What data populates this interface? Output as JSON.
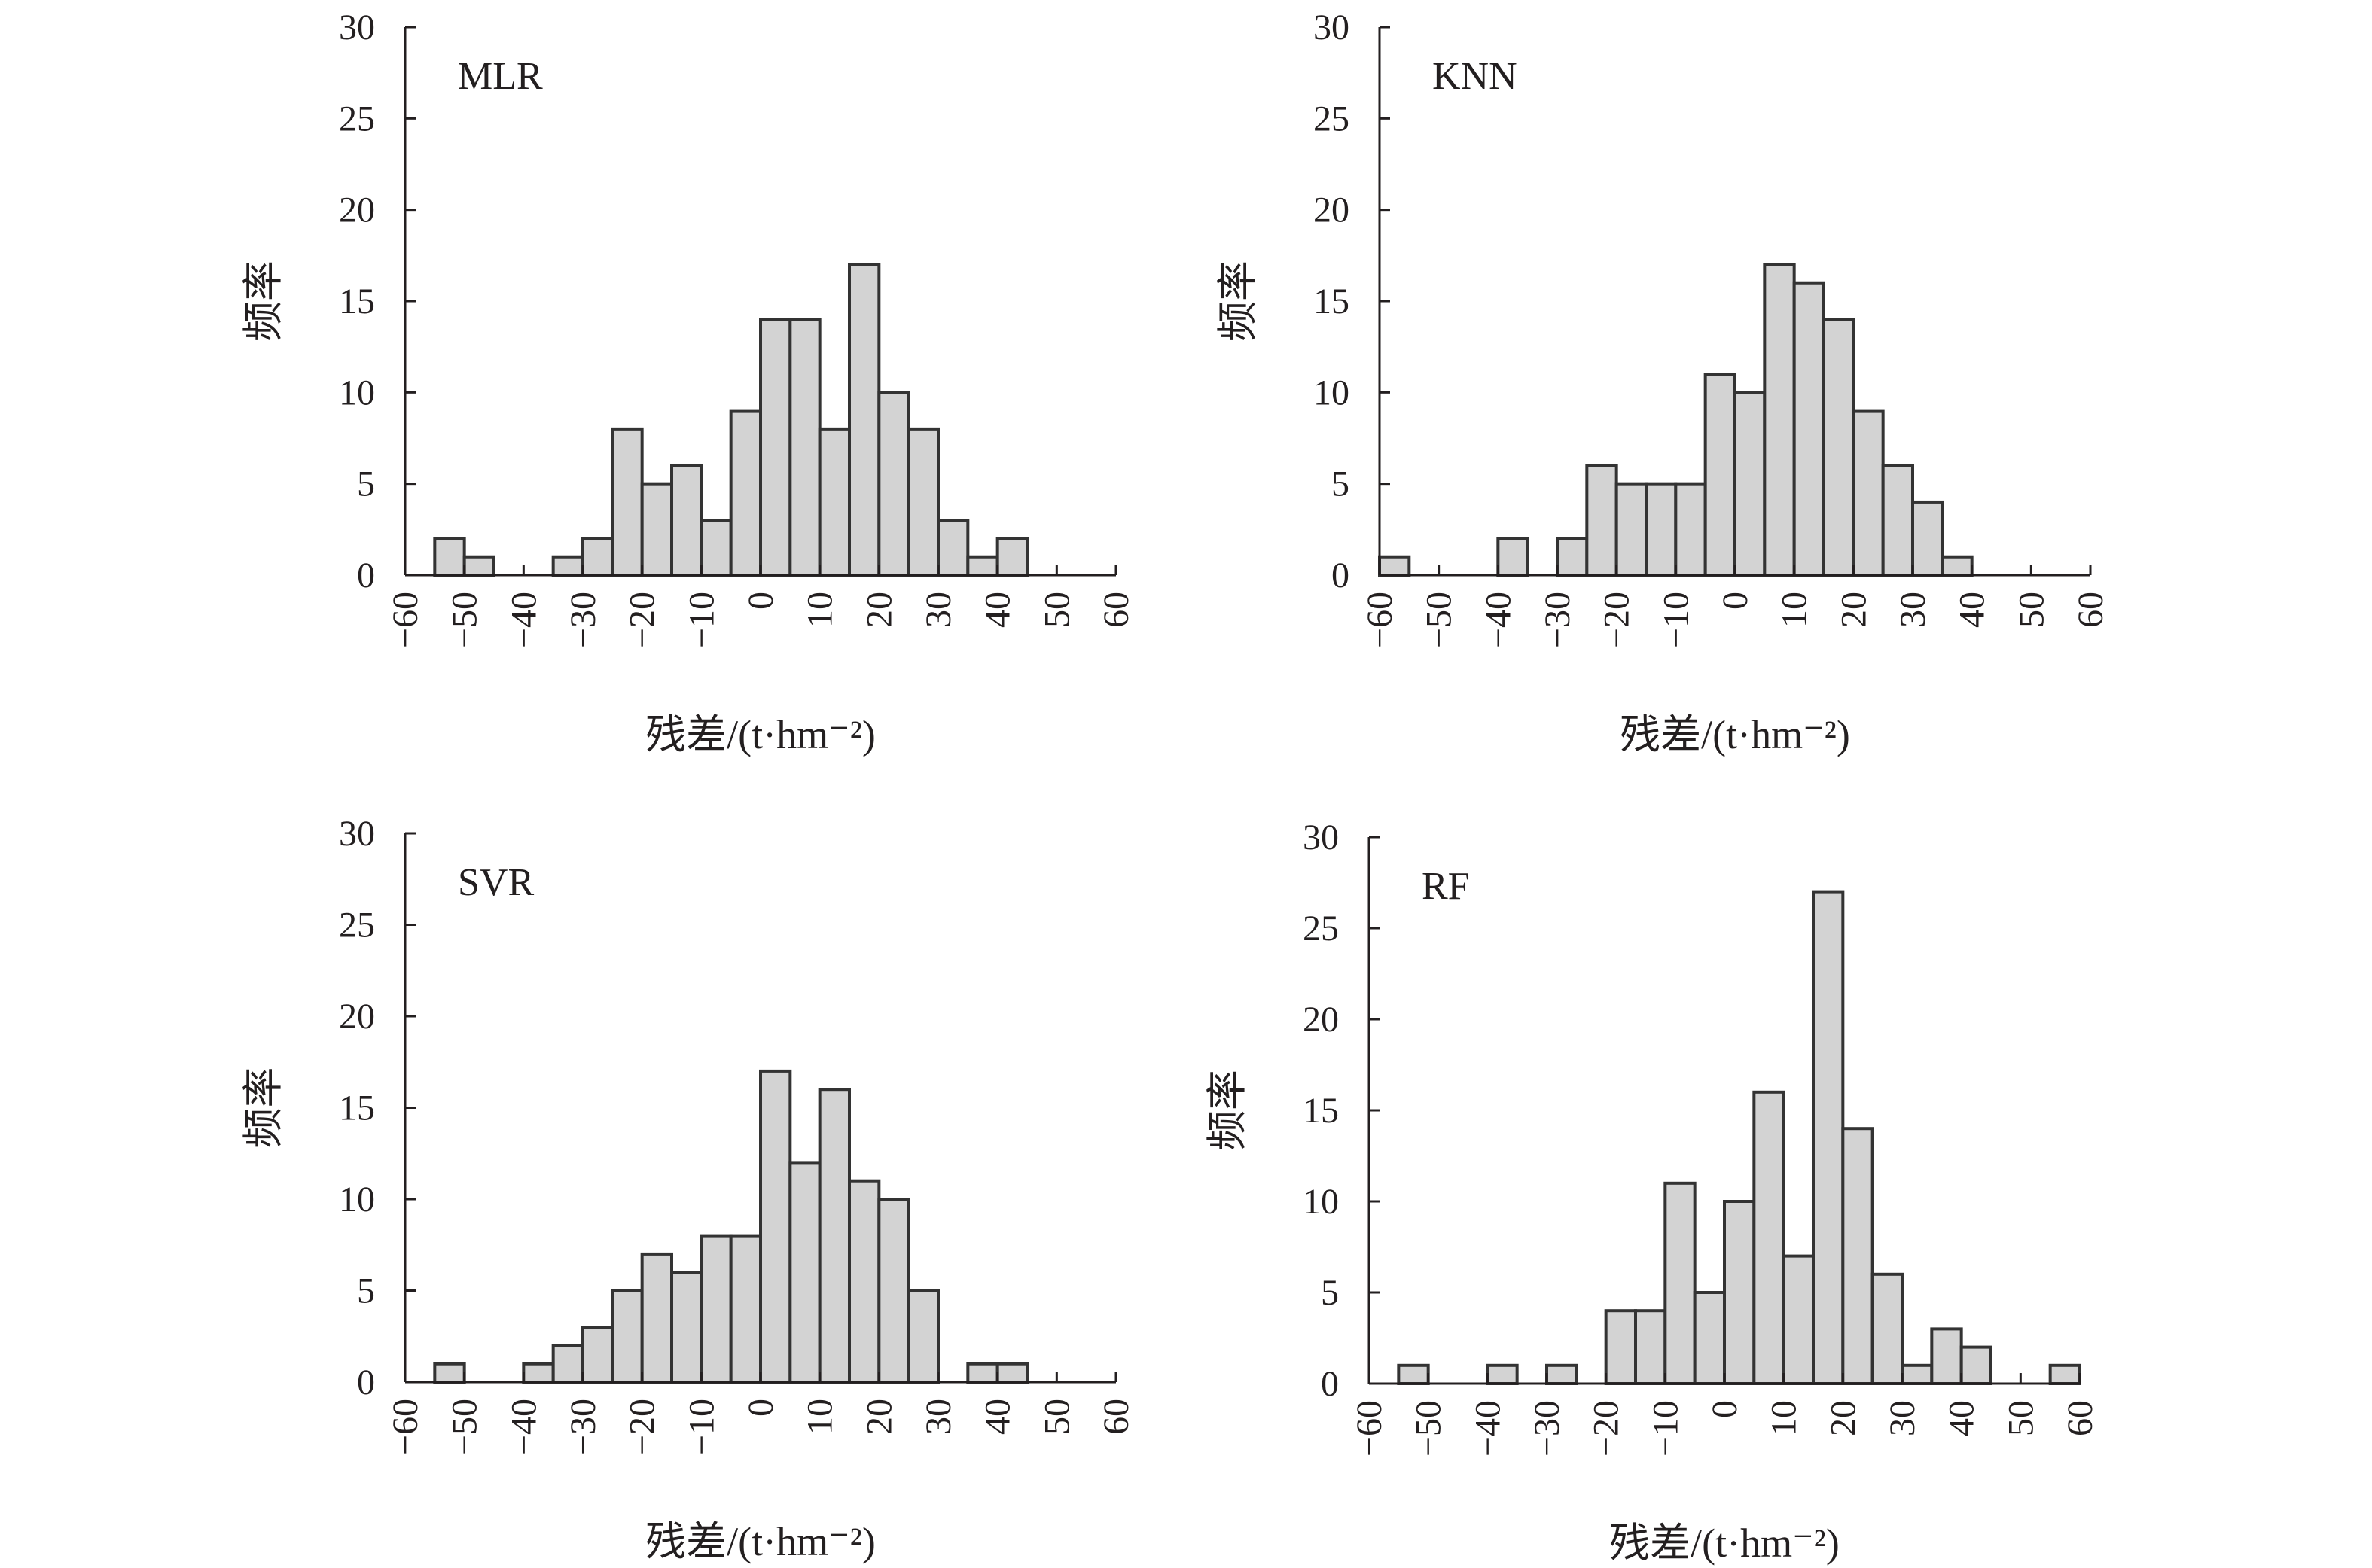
{
  "chart_data": [
    {
      "type": "bar",
      "title": "MLR",
      "xlabel": "残差/(t·hm⁻²)",
      "ylabel": "频率",
      "xlim": [
        -60,
        60
      ],
      "ylim": [
        0,
        30
      ],
      "x_ticks": [
        "−60",
        "−50",
        "−40",
        "−30",
        "−20",
        "−10",
        "0",
        "10",
        "20",
        "30",
        "40",
        "50",
        "60"
      ],
      "y_ticks": [
        "0",
        "5",
        "10",
        "15",
        "20",
        "25",
        "30"
      ],
      "bin_width": 5,
      "bin_start": -55,
      "values": [
        2,
        1,
        0,
        0,
        1,
        2,
        8,
        5,
        6,
        3,
        9,
        14,
        14,
        8,
        17,
        10,
        8,
        3,
        1,
        2
      ]
    },
    {
      "type": "bar",
      "title": "KNN",
      "xlabel": "残差/(t·hm⁻²)",
      "ylabel": "频率",
      "xlim": [
        -60,
        60
      ],
      "ylim": [
        0,
        30
      ],
      "x_ticks": [
        "−60",
        "−50",
        "−40",
        "−30",
        "−20",
        "−10",
        "0",
        "10",
        "20",
        "30",
        "40",
        "50",
        "60"
      ],
      "y_ticks": [
        "0",
        "5",
        "10",
        "15",
        "20",
        "25",
        "30"
      ],
      "bin_width": 5,
      "bin_start": -60,
      "values": [
        1,
        0,
        0,
        0,
        2,
        0,
        2,
        6,
        5,
        5,
        5,
        11,
        10,
        17,
        16,
        14,
        9,
        6,
        4,
        1
      ]
    },
    {
      "type": "bar",
      "title": "SVR",
      "xlabel": "残差/(t·hm⁻²)",
      "ylabel": "频率",
      "xlim": [
        -60,
        60
      ],
      "ylim": [
        0,
        30
      ],
      "x_ticks": [
        "−60",
        "−50",
        "−40",
        "−30",
        "−20",
        "−10",
        "0",
        "10",
        "20",
        "30",
        "40",
        "50",
        "60"
      ],
      "y_ticks": [
        "0",
        "5",
        "10",
        "15",
        "20",
        "25",
        "30"
      ],
      "bin_width": 5,
      "bin_start": -55,
      "values": [
        1,
        0,
        0,
        1,
        2,
        3,
        5,
        7,
        6,
        8,
        8,
        17,
        12,
        16,
        11,
        10,
        5,
        0,
        1,
        1
      ]
    },
    {
      "type": "bar",
      "title": "RF",
      "xlabel": "残差/(t·hm⁻²)",
      "ylabel": "频率",
      "xlim": [
        -60,
        60
      ],
      "ylim": [
        0,
        30
      ],
      "x_ticks": [
        "−60",
        "−50",
        "−40",
        "−30",
        "−20",
        "−10",
        "0",
        "10",
        "20",
        "30",
        "40",
        "50",
        "60"
      ],
      "y_ticks": [
        "0",
        "5",
        "10",
        "15",
        "20",
        "25",
        "30"
      ],
      "bin_width": 5,
      "bin_start": -55,
      "values": [
        1,
        0,
        0,
        1,
        0,
        1,
        0,
        4,
        4,
        11,
        5,
        10,
        16,
        7,
        27,
        14,
        6,
        1,
        3,
        2,
        0,
        0,
        1
      ]
    }
  ]
}
